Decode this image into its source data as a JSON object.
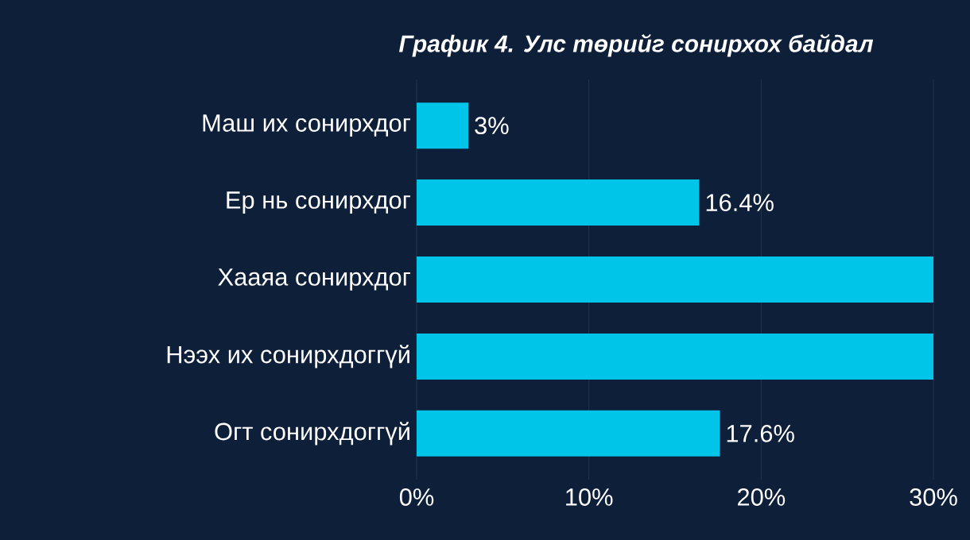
{
  "chart_data": {
    "type": "bar",
    "orientation": "horizontal",
    "title": "График 4. Улс төрийг сонирхох байдал",
    "categories": [
      "Маш их сонирхдог",
      "Ер нь сонирхдог",
      "Хааяа сонирхдог",
      "Нээх их сонирхдоггүй",
      "Огт сонирхдоггүй"
    ],
    "values": [
      3,
      16.4,
      30,
      30,
      17.6
    ],
    "value_labels": [
      "3%",
      "16.4%",
      null,
      null,
      "17.6%"
    ],
    "color": "#00c4e8",
    "xlim": [
      0,
      30
    ],
    "xticks": [
      {
        "value": 0,
        "label": "0%"
      },
      {
        "value": 10,
        "label": "10%"
      },
      {
        "value": 20,
        "label": "20%"
      },
      {
        "value": 30,
        "label": "30%"
      }
    ],
    "grid": "x"
  }
}
